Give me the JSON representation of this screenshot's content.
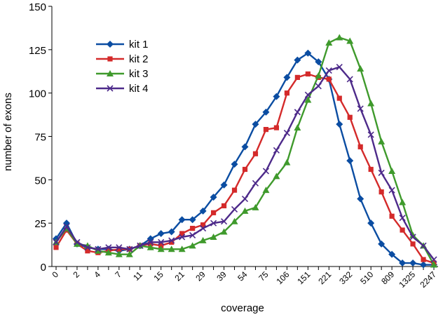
{
  "chart_data": {
    "type": "line",
    "xlabel": "coverage",
    "ylabel": "number of exons",
    "ylim": [
      0,
      150
    ],
    "yticks": [
      0,
      25,
      50,
      75,
      100,
      125,
      150
    ],
    "grid": false,
    "legend_position": "top-left",
    "x": [
      "0",
      "",
      "2",
      "",
      "4",
      "",
      "7",
      "",
      "11",
      "",
      "15",
      "",
      "21",
      "",
      "29",
      "",
      "39",
      "",
      "54",
      "",
      "75",
      "",
      "106",
      "",
      "151",
      "",
      "221",
      "",
      "332",
      "",
      "510",
      "",
      "809",
      "",
      "1325",
      "",
      "2247"
    ],
    "series": [
      {
        "name": "kit 1",
        "color": "#0b4da2",
        "marker": "diamond",
        "values": [
          16,
          25,
          13,
          11,
          10,
          10,
          9,
          10,
          12,
          16,
          19,
          20,
          27,
          27,
          32,
          40,
          47,
          59,
          69,
          82,
          89,
          98,
          109,
          119,
          123,
          118,
          108,
          82,
          61,
          39,
          25,
          13,
          7,
          2,
          2,
          1,
          1
        ]
      },
      {
        "name": "kit 2",
        "color": "#d42a2a",
        "marker": "square",
        "values": [
          11,
          21,
          13,
          9,
          8,
          9,
          10,
          10,
          12,
          13,
          12,
          14,
          19,
          22,
          24,
          31,
          35,
          44,
          56,
          65,
          79,
          80,
          100,
          109,
          111,
          109,
          108,
          97,
          86,
          69,
          56,
          43,
          29,
          21,
          13,
          4,
          2
        ]
      },
      {
        "name": "kit 3",
        "color": "#3f9a2c",
        "marker": "triangle",
        "values": [
          14,
          22,
          13,
          12,
          9,
          8,
          7,
          7,
          12,
          11,
          10,
          10,
          10,
          12,
          15,
          17,
          20,
          26,
          32,
          34,
          44,
          52,
          60,
          80,
          96,
          110,
          129,
          132,
          130,
          114,
          94,
          72,
          55,
          37,
          18,
          12,
          1
        ]
      },
      {
        "name": "kit 4",
        "color": "#4d2a8a",
        "marker": "x",
        "values": [
          14,
          23,
          14,
          11,
          10,
          11,
          11,
          10,
          12,
          14,
          14,
          15,
          17,
          18,
          22,
          25,
          26,
          33,
          39,
          48,
          55,
          67,
          77,
          89,
          99,
          104,
          113,
          115,
          108,
          91,
          76,
          54,
          44,
          28,
          17,
          12,
          4
        ]
      }
    ]
  }
}
